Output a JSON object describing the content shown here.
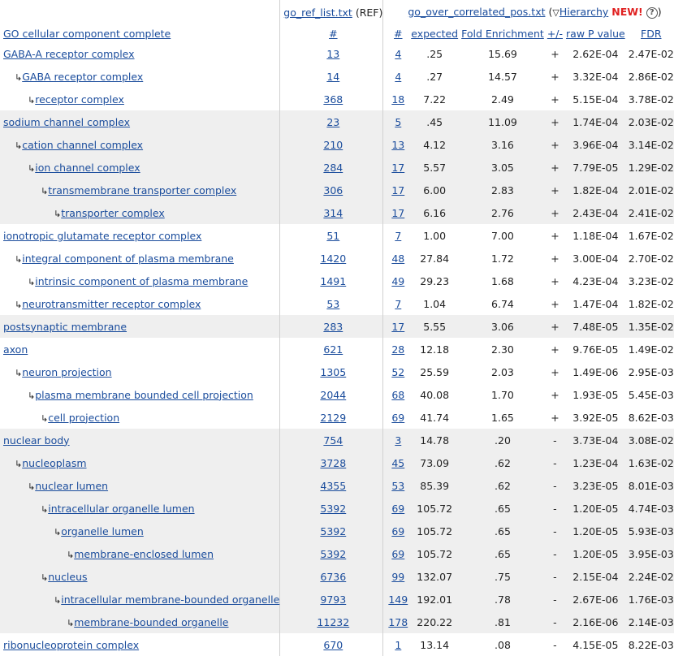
{
  "header": {
    "ref_file": "go_ref_list.txt",
    "ref_suffix": "(REF)",
    "analyzed_file": "go_over_correlated_pos.txt",
    "paren_open": "(",
    "hierarchy_label": "Hierarchy",
    "new_label": "NEW!",
    "paren_close": ")",
    "info_icon": "?"
  },
  "columns": {
    "term": "GO cellular component complete",
    "ref_count": "#",
    "count": "#",
    "expected": "expected",
    "fold": "Fold Enrichment",
    "direction": "+/-",
    "pvalue": "raw P value",
    "fdr": "FDR"
  },
  "rows": [
    {
      "term": "GABA-A receptor complex",
      "level": 0,
      "ref": "13",
      "count": "4",
      "expected": ".25",
      "fold": "15.69",
      "dir": "+",
      "p": "2.62E-04",
      "fdr": "2.47E-02",
      "group": false
    },
    {
      "term": "GABA receptor complex",
      "level": 1,
      "ref": "14",
      "count": "4",
      "expected": ".27",
      "fold": "14.57",
      "dir": "+",
      "p": "3.32E-04",
      "fdr": "2.86E-02",
      "group": false
    },
    {
      "term": "receptor complex",
      "level": 2,
      "ref": "368",
      "count": "18",
      "expected": "7.22",
      "fold": "2.49",
      "dir": "+",
      "p": "5.15E-04",
      "fdr": "3.78E-02",
      "group": false
    },
    {
      "term": "sodium channel complex",
      "level": 0,
      "ref": "23",
      "count": "5",
      "expected": ".45",
      "fold": "11.09",
      "dir": "+",
      "p": "1.74E-04",
      "fdr": "2.03E-02",
      "group": true
    },
    {
      "term": "cation channel complex",
      "level": 1,
      "ref": "210",
      "count": "13",
      "expected": "4.12",
      "fold": "3.16",
      "dir": "+",
      "p": "3.96E-04",
      "fdr": "3.14E-02",
      "group": true
    },
    {
      "term": "ion channel complex",
      "level": 2,
      "ref": "284",
      "count": "17",
      "expected": "5.57",
      "fold": "3.05",
      "dir": "+",
      "p": "7.79E-05",
      "fdr": "1.29E-02",
      "group": true
    },
    {
      "term": "transmembrane transporter complex",
      "level": 3,
      "ref": "306",
      "count": "17",
      "expected": "6.00",
      "fold": "2.83",
      "dir": "+",
      "p": "1.82E-04",
      "fdr": "2.01E-02",
      "group": true
    },
    {
      "term": "transporter complex",
      "level": 4,
      "ref": "314",
      "count": "17",
      "expected": "6.16",
      "fold": "2.76",
      "dir": "+",
      "p": "2.43E-04",
      "fdr": "2.41E-02",
      "group": true
    },
    {
      "term": "ionotropic glutamate receptor complex",
      "level": 0,
      "ref": "51",
      "count": "7",
      "expected": "1.00",
      "fold": "7.00",
      "dir": "+",
      "p": "1.18E-04",
      "fdr": "1.67E-02",
      "group": false
    },
    {
      "term": "integral component of plasma membrane",
      "level": 1,
      "ref": "1420",
      "count": "48",
      "expected": "27.84",
      "fold": "1.72",
      "dir": "+",
      "p": "3.00E-04",
      "fdr": "2.70E-02",
      "group": false
    },
    {
      "term": "intrinsic component of plasma membrane",
      "level": 2,
      "ref": "1491",
      "count": "49",
      "expected": "29.23",
      "fold": "1.68",
      "dir": "+",
      "p": "4.23E-04",
      "fdr": "3.23E-02",
      "group": false
    },
    {
      "term": "neurotransmitter receptor complex",
      "level": 1,
      "ref": "53",
      "count": "7",
      "expected": "1.04",
      "fold": "6.74",
      "dir": "+",
      "p": "1.47E-04",
      "fdr": "1.82E-02",
      "group": false
    },
    {
      "term": "postsynaptic membrane",
      "level": 0,
      "ref": "283",
      "count": "17",
      "expected": "5.55",
      "fold": "3.06",
      "dir": "+",
      "p": "7.48E-05",
      "fdr": "1.35E-02",
      "group": true
    },
    {
      "term": "axon",
      "level": 0,
      "ref": "621",
      "count": "28",
      "expected": "12.18",
      "fold": "2.30",
      "dir": "+",
      "p": "9.76E-05",
      "fdr": "1.49E-02",
      "group": false
    },
    {
      "term": "neuron projection",
      "level": 1,
      "ref": "1305",
      "count": "52",
      "expected": "25.59",
      "fold": "2.03",
      "dir": "+",
      "p": "1.49E-06",
      "fdr": "2.95E-03",
      "group": false
    },
    {
      "term": "plasma membrane bounded cell projection",
      "level": 2,
      "ref": "2044",
      "count": "68",
      "expected": "40.08",
      "fold": "1.70",
      "dir": "+",
      "p": "1.93E-05",
      "fdr": "5.45E-03",
      "group": false
    },
    {
      "term": "cell projection",
      "level": 3,
      "ref": "2129",
      "count": "69",
      "expected": "41.74",
      "fold": "1.65",
      "dir": "+",
      "p": "3.92E-05",
      "fdr": "8.62E-03",
      "group": false
    },
    {
      "term": "nuclear body",
      "level": 0,
      "ref": "754",
      "count": "3",
      "expected": "14.78",
      "fold": ".20",
      "dir": "-",
      "p": "3.73E-04",
      "fdr": "3.08E-02",
      "group": true
    },
    {
      "term": "nucleoplasm",
      "level": 1,
      "ref": "3728",
      "count": "45",
      "expected": "73.09",
      "fold": ".62",
      "dir": "-",
      "p": "1.23E-04",
      "fdr": "1.63E-02",
      "group": true
    },
    {
      "term": "nuclear lumen",
      "level": 2,
      "ref": "4355",
      "count": "53",
      "expected": "85.39",
      "fold": ".62",
      "dir": "-",
      "p": "3.23E-05",
      "fdr": "8.01E-03",
      "group": true
    },
    {
      "term": "intracellular organelle lumen",
      "level": 3,
      "ref": "5392",
      "count": "69",
      "expected": "105.72",
      "fold": ".65",
      "dir": "-",
      "p": "1.20E-05",
      "fdr": "4.74E-03",
      "group": true
    },
    {
      "term": "organelle lumen",
      "level": 4,
      "ref": "5392",
      "count": "69",
      "expected": "105.72",
      "fold": ".65",
      "dir": "-",
      "p": "1.20E-05",
      "fdr": "5.93E-03",
      "group": true
    },
    {
      "term": "membrane-enclosed lumen",
      "level": 5,
      "ref": "5392",
      "count": "69",
      "expected": "105.72",
      "fold": ".65",
      "dir": "-",
      "p": "1.20E-05",
      "fdr": "3.95E-03",
      "group": true
    },
    {
      "term": "nucleus",
      "level": 3,
      "ref": "6736",
      "count": "99",
      "expected": "132.07",
      "fold": ".75",
      "dir": "-",
      "p": "2.15E-04",
      "fdr": "2.24E-02",
      "group": true
    },
    {
      "term": "intracellular membrane-bounded organelle",
      "level": 4,
      "ref": "9793",
      "count": "149",
      "expected": "192.01",
      "fold": ".78",
      "dir": "-",
      "p": "2.67E-06",
      "fdr": "1.76E-03",
      "group": true
    },
    {
      "term": "membrane-bounded organelle",
      "level": 5,
      "ref": "11232",
      "count": "178",
      "expected": "220.22",
      "fold": ".81",
      "dir": "-",
      "p": "2.16E-06",
      "fdr": "2.14E-03",
      "group": true
    },
    {
      "term": "ribonucleoprotein complex",
      "level": 0,
      "ref": "670",
      "count": "1",
      "expected": "13.14",
      "fold": ".08",
      "dir": "-",
      "p": "4.15E-05",
      "fdr": "8.22E-03",
      "group": false
    }
  ]
}
